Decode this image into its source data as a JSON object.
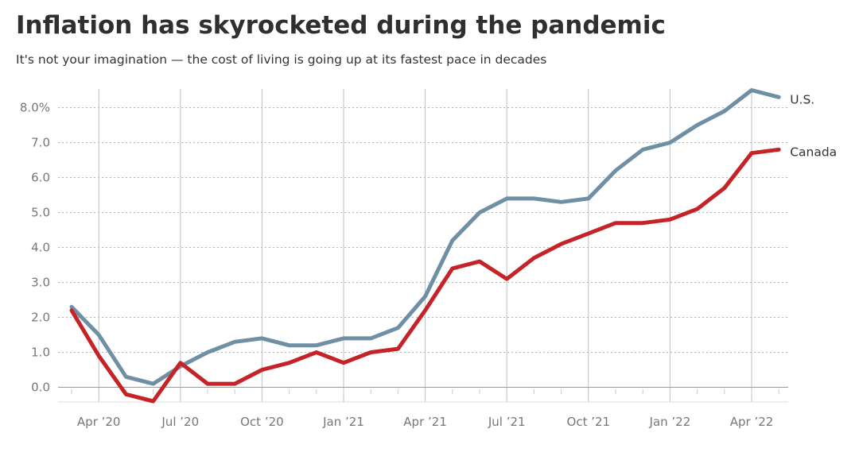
{
  "title": "Inflation has skyrocketed during the pandemic",
  "subtitle": "It's not your imagination — the cost of living is going up at its fastest pace in decades",
  "colors": {
    "us": "#6f8fa5",
    "canada": "#c62328",
    "grid": "#b3b3b3",
    "vertical_grid": "#b8c2c8",
    "tick_text": "#777777"
  },
  "chart_data": {
    "type": "line",
    "title": "Inflation has skyrocketed during the pandemic",
    "subtitle": "It's not your imagination — the cost of living is going up at its fastest pace in decades",
    "xlabel": "",
    "ylabel": "",
    "x": [
      "2020-03",
      "2020-04",
      "2020-05",
      "2020-06",
      "2020-07",
      "2020-08",
      "2020-09",
      "2020-10",
      "2020-11",
      "2020-12",
      "2021-01",
      "2021-02",
      "2021-03",
      "2021-04",
      "2021-05",
      "2021-06",
      "2021-07",
      "2021-08",
      "2021-09",
      "2021-10",
      "2021-11",
      "2021-12",
      "2022-01",
      "2022-02",
      "2022-03",
      "2022-04",
      "2022-05"
    ],
    "series": [
      {
        "name": "U.S.",
        "color": "#6f8fa5",
        "values": [
          2.3,
          1.5,
          0.3,
          0.1,
          0.6,
          1.0,
          1.3,
          1.4,
          1.2,
          1.2,
          1.4,
          1.4,
          1.7,
          2.6,
          4.2,
          5.0,
          5.4,
          5.4,
          5.3,
          5.4,
          6.2,
          6.8,
          7.0,
          7.5,
          7.9,
          8.5,
          8.3
        ]
      },
      {
        "name": "Canada",
        "color": "#c62328",
        "values": [
          2.2,
          0.9,
          -0.2,
          -0.4,
          0.7,
          0.1,
          0.1,
          0.5,
          0.7,
          1.0,
          0.7,
          1.0,
          1.1,
          2.2,
          3.4,
          3.6,
          3.1,
          3.7,
          4.1,
          4.4,
          4.7,
          4.7,
          4.8,
          5.1,
          5.7,
          6.7,
          6.8
        ]
      }
    ],
    "x_ticks": [
      {
        "date": "2020-04",
        "label": "Apr ’20"
      },
      {
        "date": "2020-07",
        "label": "Jul ’20"
      },
      {
        "date": "2020-10",
        "label": "Oct ’20"
      },
      {
        "date": "2021-01",
        "label": "Jan ’21"
      },
      {
        "date": "2021-04",
        "label": "Apr ’21"
      },
      {
        "date": "2021-07",
        "label": "Jul ’21"
      },
      {
        "date": "2021-10",
        "label": "Oct ’21"
      },
      {
        "date": "2022-01",
        "label": "Jan ’22"
      },
      {
        "date": "2022-04",
        "label": "Apr ’22"
      }
    ],
    "y_ticks": [
      {
        "value": 0,
        "label": "0.0"
      },
      {
        "value": 1,
        "label": "1.0"
      },
      {
        "value": 2,
        "label": "2.0"
      },
      {
        "value": 3,
        "label": "3.0"
      },
      {
        "value": 4,
        "label": "4.0"
      },
      {
        "value": 5,
        "label": "5.0"
      },
      {
        "value": 6,
        "label": "6.0"
      },
      {
        "value": 7,
        "label": "7.0"
      },
      {
        "value": 8,
        "label": "8.0%"
      }
    ],
    "ylim": [
      -0.5,
      8.6
    ],
    "grid": true,
    "legend": "direct labels at line ends"
  }
}
